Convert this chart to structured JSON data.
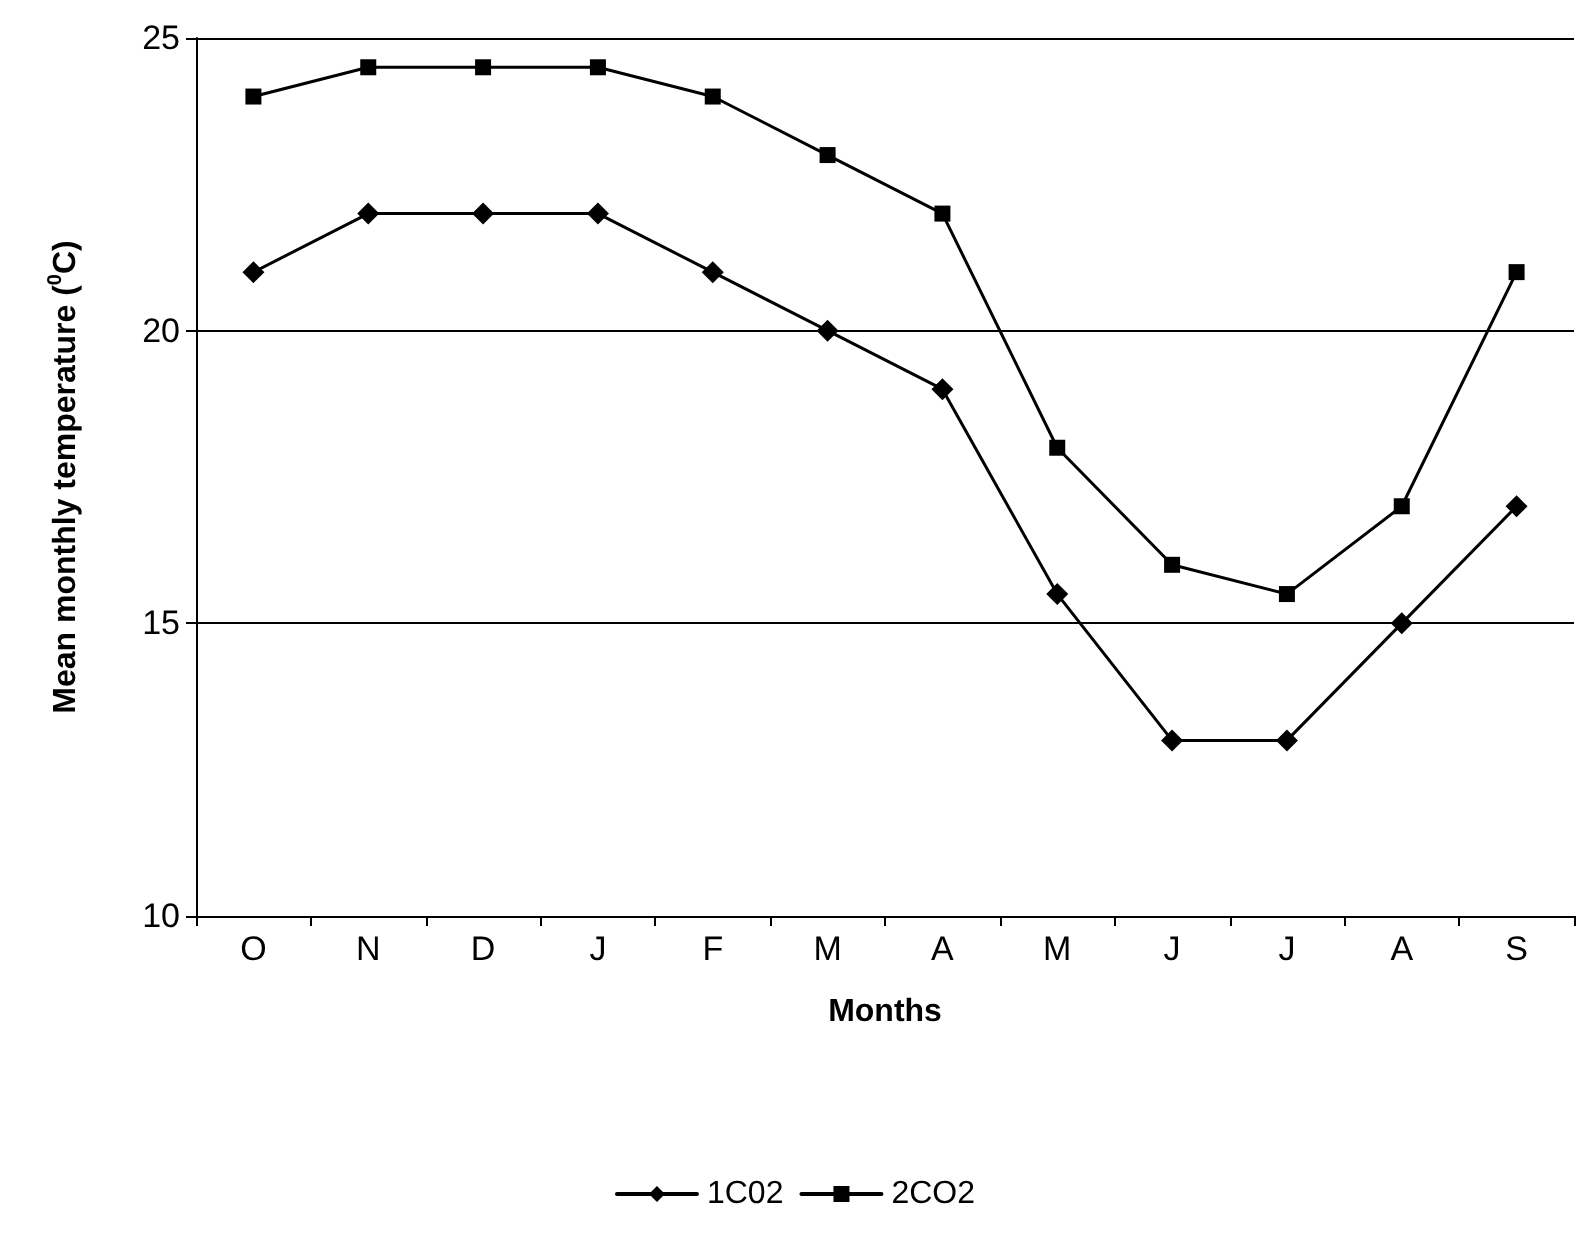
{
  "chart_data": {
    "type": "line",
    "xlabel": "Months",
    "ylabel": "Mean monthly temperature ($^{0}$C)",
    "categories": [
      "O",
      "N",
      "D",
      "J",
      "F",
      "M",
      "A",
      "M",
      "J",
      "J",
      "A",
      "S"
    ],
    "series": [
      {
        "name": "1C02",
        "color": "#000000",
        "marker": "diamond",
        "values": [
          21,
          22,
          22,
          22,
          21,
          20,
          19,
          15.5,
          13,
          13,
          15,
          17
        ]
      },
      {
        "name": "2CO2",
        "color": "#000000",
        "marker": "square",
        "values": [
          24,
          24.5,
          24.5,
          24.5,
          24,
          23,
          22,
          18,
          16,
          15.5,
          17,
          21
        ]
      }
    ],
    "ylim": [
      10,
      25
    ],
    "yticks": [
      10,
      15,
      20,
      25
    ],
    "grid": "y",
    "legend": "bottom",
    "line_style": "solid"
  }
}
